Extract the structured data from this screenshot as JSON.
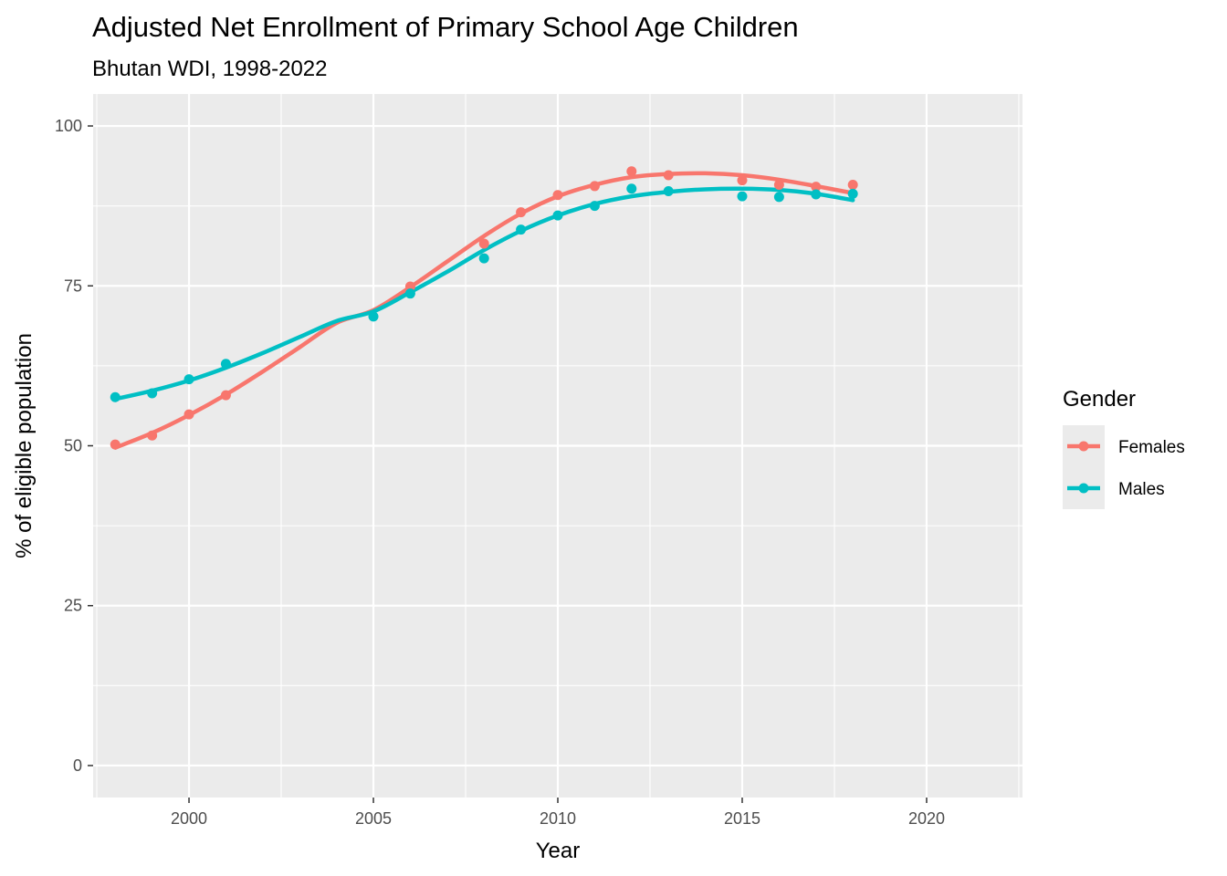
{
  "chart_data": {
    "type": "line",
    "title": "Adjusted Net Enrollment of Primary School Age Children",
    "subtitle": "Bhutan WDI, 1998-2022",
    "xlabel": "Year",
    "ylabel": "% of eligible population",
    "xlim": [
      1997.4,
      2022.6
    ],
    "ylim": [
      -5,
      105
    ],
    "x_ticks": [
      2000,
      2005,
      2010,
      2015,
      2020
    ],
    "y_ticks": [
      0,
      25,
      50,
      75,
      100
    ],
    "grid": true,
    "legend": {
      "title": "Gender",
      "position": "right"
    },
    "series": [
      {
        "name": "Females",
        "color": "#F8766D",
        "points": [
          [
            1998,
            50.2
          ],
          [
            1999,
            51.6
          ],
          [
            2000,
            54.9
          ],
          [
            2001,
            57.9
          ],
          [
            2006,
            74.9
          ],
          [
            2008,
            81.6
          ],
          [
            2009,
            86.5
          ],
          [
            2010,
            89.2
          ],
          [
            2011,
            90.6
          ],
          [
            2012,
            92.9
          ],
          [
            2013,
            92.3
          ],
          [
            2015,
            91.5
          ],
          [
            2016,
            90.8
          ],
          [
            2017,
            90.5
          ],
          [
            2018,
            90.8
          ]
        ],
        "trend": [
          [
            1998,
            49.7
          ],
          [
            1999,
            52.0
          ],
          [
            2000,
            54.8
          ],
          [
            2001,
            58.0
          ],
          [
            2002,
            61.6
          ],
          [
            2003,
            65.4
          ],
          [
            2004,
            69.2
          ],
          [
            2005,
            71.2
          ],
          [
            2006,
            74.8
          ],
          [
            2007,
            78.8
          ],
          [
            2008,
            82.8
          ],
          [
            2009,
            86.3
          ],
          [
            2010,
            89.0
          ],
          [
            2011,
            90.8
          ],
          [
            2012,
            92.0
          ],
          [
            2013,
            92.5
          ],
          [
            2014,
            92.6
          ],
          [
            2015,
            92.3
          ],
          [
            2016,
            91.6
          ],
          [
            2017,
            90.6
          ],
          [
            2018,
            89.5
          ]
        ]
      },
      {
        "name": "Males",
        "color": "#00BFC4",
        "points": [
          [
            1998,
            57.6
          ],
          [
            1999,
            58.2
          ],
          [
            2000,
            60.4
          ],
          [
            2001,
            62.8
          ],
          [
            2005,
            70.2
          ],
          [
            2006,
            73.8
          ],
          [
            2008,
            79.3
          ],
          [
            2009,
            83.8
          ],
          [
            2010,
            86.0
          ],
          [
            2011,
            87.5
          ],
          [
            2012,
            90.2
          ],
          [
            2013,
            89.8
          ],
          [
            2015,
            89.0
          ],
          [
            2016,
            88.9
          ],
          [
            2017,
            89.3
          ],
          [
            2018,
            89.4
          ]
        ],
        "trend": [
          [
            1998,
            57.3
          ],
          [
            1999,
            58.6
          ],
          [
            2000,
            60.2
          ],
          [
            2001,
            62.2
          ],
          [
            2002,
            64.5
          ],
          [
            2003,
            67.0
          ],
          [
            2004,
            69.5
          ],
          [
            2005,
            71.0
          ],
          [
            2006,
            74.0
          ],
          [
            2007,
            77.2
          ],
          [
            2008,
            80.6
          ],
          [
            2009,
            83.6
          ],
          [
            2010,
            86.0
          ],
          [
            2011,
            87.8
          ],
          [
            2012,
            89.0
          ],
          [
            2013,
            89.7
          ],
          [
            2014,
            90.1
          ],
          [
            2015,
            90.2
          ],
          [
            2016,
            90.0
          ],
          [
            2017,
            89.4
          ],
          [
            2018,
            88.4
          ]
        ]
      }
    ]
  }
}
